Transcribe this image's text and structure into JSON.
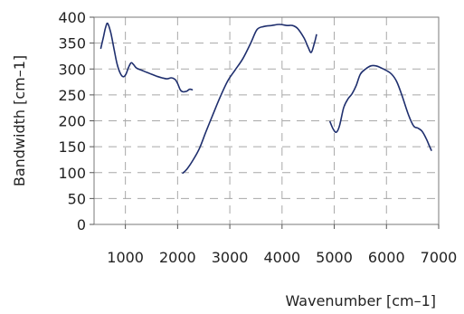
{
  "chart_data": {
    "type": "line",
    "title": "",
    "xlabel": "Wavenumber [cm–1]",
    "ylabel": "Bandwidth [cm–1]",
    "xlim": [
      400,
      7000
    ],
    "ylim": [
      0,
      400
    ],
    "grid": true,
    "x_ticks": [
      1000,
      2000,
      3000,
      4000,
      5000,
      6000,
      7000
    ],
    "x_tick_labels": [
      "1000",
      "2000",
      "3000",
      "4000",
      "5000",
      "6000",
      "7000"
    ],
    "y_ticks": [
      0,
      50,
      100,
      150,
      200,
      250,
      300,
      350,
      400
    ],
    "y_tick_labels": [
      "0",
      "50",
      "100",
      "150",
      "200",
      "250",
      "300",
      "350",
      "400"
    ],
    "line_color": "#1f2f6e",
    "series": [
      {
        "segments": [
          [
            [
              530,
              340
            ],
            [
              580,
              362
            ],
            [
              620,
              380
            ],
            [
              660,
              388
            ],
            [
              720,
              370
            ],
            [
              780,
              340
            ],
            [
              840,
              310
            ],
            [
              900,
              292
            ],
            [
              960,
              285
            ],
            [
              1010,
              290
            ],
            [
              1060,
              303
            ],
            [
              1110,
              312
            ],
            [
              1160,
              308
            ],
            [
              1210,
              302
            ],
            [
              1300,
              298
            ],
            [
              1400,
              294
            ],
            [
              1500,
              290
            ],
            [
              1600,
              286
            ],
            [
              1700,
              283
            ],
            [
              1800,
              281
            ],
            [
              1880,
              283
            ],
            [
              1950,
              280
            ],
            [
              2000,
              272
            ],
            [
              2050,
              260
            ],
            [
              2100,
              256
            ],
            [
              2170,
              257
            ],
            [
              2230,
              261
            ],
            [
              2280,
              260
            ]
          ],
          [
            [
              2100,
              99
            ],
            [
              2180,
              107
            ],
            [
              2300,
              125
            ],
            [
              2420,
              147
            ],
            [
              2540,
              178
            ],
            [
              2680,
              213
            ],
            [
              2820,
              247
            ],
            [
              2960,
              277
            ],
            [
              3100,
              298
            ],
            [
              3250,
              320
            ],
            [
              3400,
              350
            ],
            [
              3520,
              376
            ],
            [
              3650,
              382
            ],
            [
              3800,
              384
            ],
            [
              3950,
              386
            ],
            [
              4100,
              384
            ],
            [
              4200,
              384
            ],
            [
              4300,
              378
            ],
            [
              4420,
              360
            ],
            [
              4500,
              342
            ],
            [
              4560,
              332
            ],
            [
              4620,
              350
            ],
            [
              4660,
              366
            ]
          ],
          [
            [
              4920,
              198
            ],
            [
              4980,
              184
            ],
            [
              5040,
              178
            ],
            [
              5100,
              190
            ],
            [
              5180,
              225
            ],
            [
              5260,
              242
            ],
            [
              5340,
              252
            ],
            [
              5420,
              268
            ],
            [
              5500,
              290
            ],
            [
              5600,
              300
            ],
            [
              5700,
              306
            ],
            [
              5800,
              306
            ],
            [
              5900,
              302
            ],
            [
              6000,
              297
            ],
            [
              6100,
              290
            ],
            [
              6200,
              275
            ],
            [
              6300,
              248
            ],
            [
              6420,
              212
            ],
            [
              6520,
              190
            ],
            [
              6600,
              186
            ],
            [
              6680,
              180
            ],
            [
              6760,
              166
            ],
            [
              6820,
              152
            ],
            [
              6860,
              143
            ]
          ]
        ]
      }
    ]
  }
}
